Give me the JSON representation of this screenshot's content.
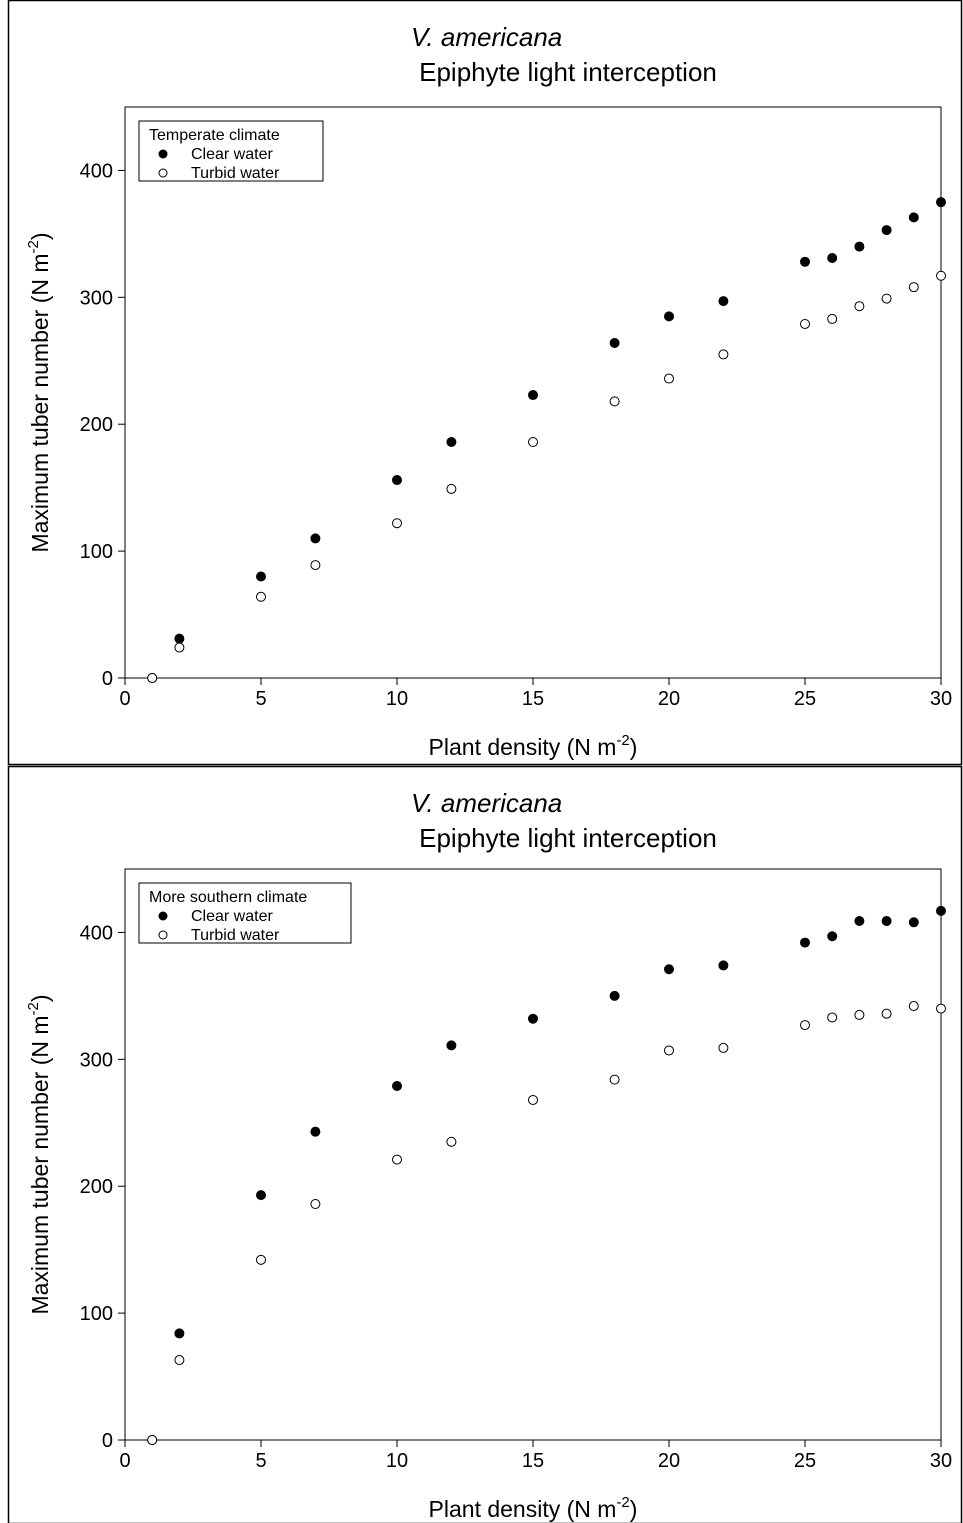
{
  "chart_data": [
    {
      "type": "scatter",
      "title": "V. americana",
      "subtitle": "Epiphyte light interception",
      "x_label": [
        "Plant density (N m",
        "-2",
        ")"
      ],
      "y_label": [
        "Maximum tuber number (N m",
        "-2",
        ")"
      ],
      "legend_title": "Temperate climate",
      "legend": "upper left",
      "xlim": [
        0,
        30
      ],
      "xticks": [
        0,
        5,
        10,
        15,
        20,
        25,
        30
      ],
      "ylim": [
        0,
        450
      ],
      "yticks": [
        0,
        100,
        200,
        300,
        400
      ],
      "series": [
        {
          "name": "Clear water",
          "color": "#000000",
          "filled": true,
          "x": [
            1,
            2,
            5,
            7,
            10,
            12,
            15,
            18,
            20,
            22,
            25,
            26,
            27,
            28,
            29,
            30
          ],
          "values": [
            0,
            31,
            80,
            110,
            156,
            186,
            223,
            264,
            285,
            297,
            328,
            331,
            340,
            353,
            363,
            375
          ]
        },
        {
          "name": "Turbid water",
          "color": "#000000",
          "filled": false,
          "x": [
            1,
            2,
            5,
            7,
            10,
            12,
            15,
            18,
            20,
            22,
            25,
            26,
            27,
            28,
            29,
            30
          ],
          "values": [
            0,
            24,
            64,
            89,
            122,
            149,
            186,
            218,
            236,
            255,
            279,
            283,
            293,
            299,
            308,
            317
          ]
        }
      ]
    },
    {
      "type": "scatter",
      "title": "V. americana",
      "subtitle": "Epiphyte light interception",
      "x_label": [
        "Plant density (N m",
        "-2",
        ")"
      ],
      "y_label": [
        "Maximum tuber number (N m",
        "-2",
        ")"
      ],
      "legend_title": "More southern climate",
      "legend": "upper left",
      "xlim": [
        0,
        30
      ],
      "xticks": [
        0,
        5,
        10,
        15,
        20,
        25,
        30
      ],
      "ylim": [
        0,
        450
      ],
      "yticks": [
        0,
        100,
        200,
        300,
        400
      ],
      "series": [
        {
          "name": "Clear water",
          "color": "#000000",
          "filled": true,
          "x": [
            1,
            2,
            5,
            7,
            10,
            12,
            15,
            18,
            20,
            22,
            25,
            26,
            27,
            28,
            29,
            30
          ],
          "values": [
            0,
            84,
            193,
            243,
            279,
            311,
            332,
            350,
            371,
            374,
            392,
            397,
            409,
            409,
            408,
            417
          ]
        },
        {
          "name": "Turbid water",
          "color": "#000000",
          "filled": false,
          "x": [
            1,
            2,
            5,
            7,
            10,
            12,
            15,
            18,
            20,
            22,
            25,
            26,
            27,
            28,
            29,
            30
          ],
          "values": [
            0,
            63,
            142,
            186,
            221,
            235,
            268,
            284,
            307,
            309,
            327,
            333,
            335,
            336,
            342,
            340
          ]
        }
      ]
    }
  ]
}
